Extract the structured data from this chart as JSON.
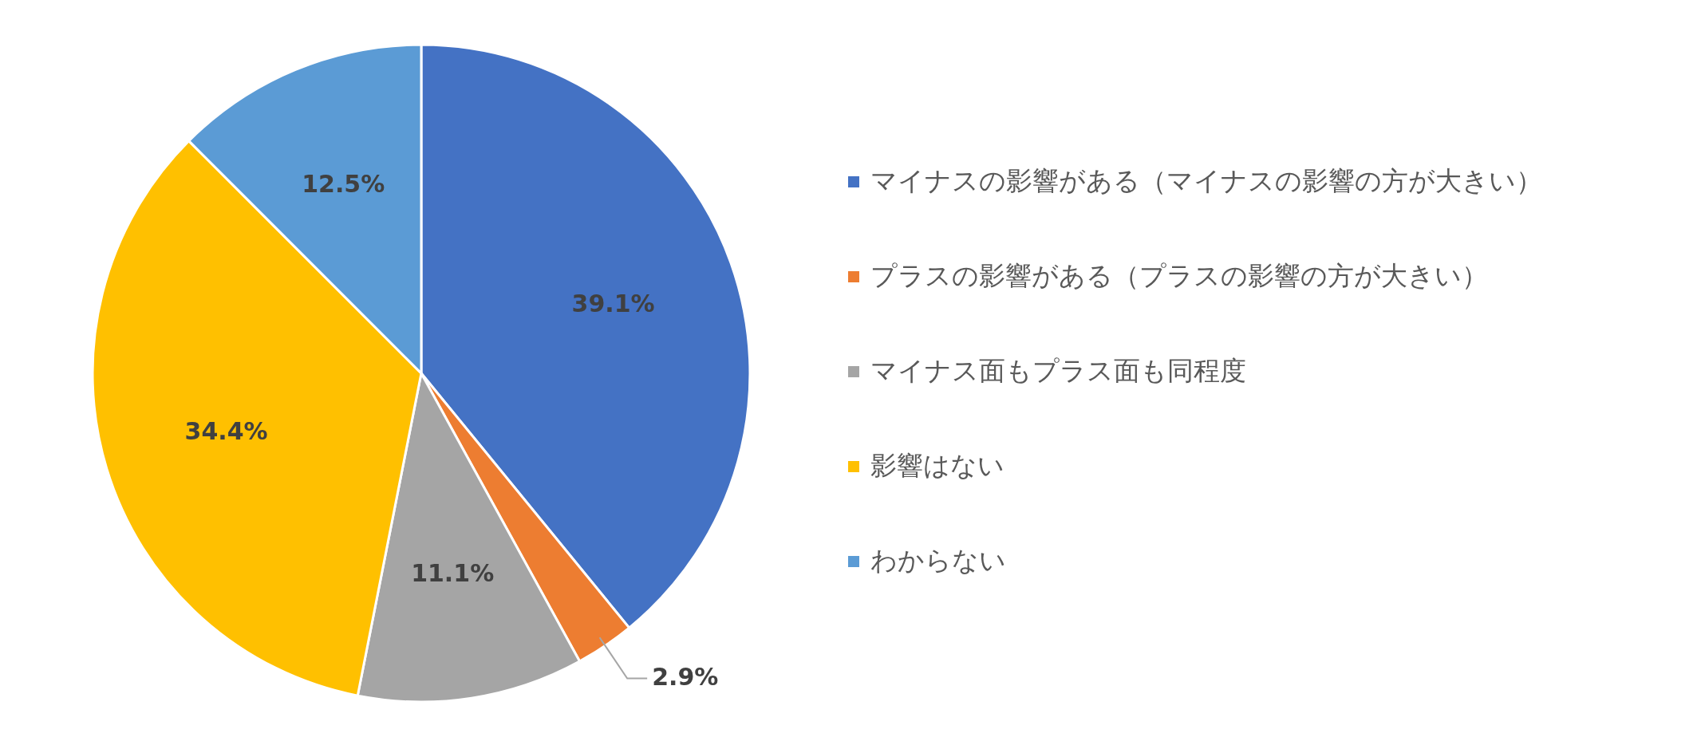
{
  "chart_data": {
    "type": "pie",
    "categories": [
      "マイナスの影響がある（マイナスの影響の方が大きい）",
      "プラスの影響がある（プラスの影響の方が大きい）",
      "マイナス面もプラス面も同程度",
      "影響はない",
      "わからない"
    ],
    "values": [
      39.1,
      2.9,
      11.1,
      34.4,
      12.5
    ],
    "colors": [
      "#4472c4",
      "#ed7d31",
      "#a5a5a5",
      "#ffc000",
      "#5b9bd5"
    ],
    "value_labels": [
      "39.1%",
      "2.9%",
      "11.1%",
      "34.4%",
      "12.5%"
    ],
    "legend": "right"
  }
}
